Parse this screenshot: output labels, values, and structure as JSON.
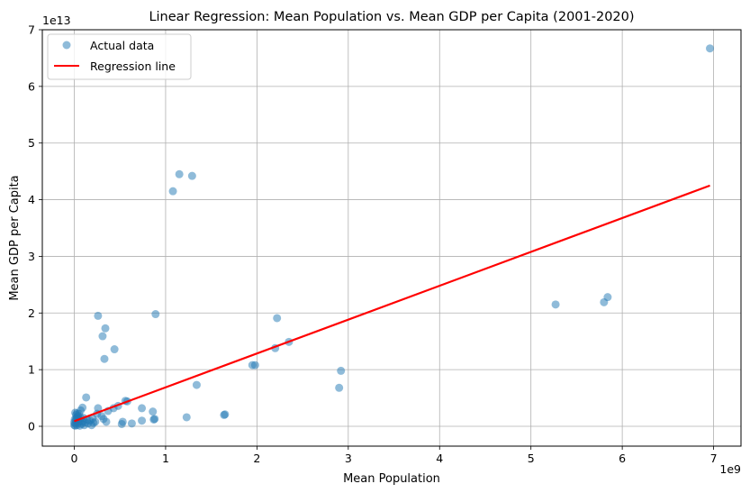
{
  "chart_data": {
    "type": "scatter",
    "title": "Linear Regression: Mean Population vs. Mean GDP per Capita (2001-2020)",
    "xlabel": "Mean Population",
    "ylabel": "Mean GDP per Capita",
    "x_multiplier": "1e9",
    "y_multiplier": "1e13",
    "xlim": [
      -0.35,
      7.3
    ],
    "ylim": [
      -0.35,
      7.0
    ],
    "x_ticks": [
      0,
      1,
      2,
      3,
      4,
      5,
      6,
      7
    ],
    "y_ticks": [
      0,
      1,
      2,
      3,
      4,
      5,
      6,
      7
    ],
    "grid": true,
    "legend_position": "top-left",
    "series": [
      {
        "name": "Actual data",
        "kind": "scatter",
        "color": "#1f77b4",
        "points": [
          [
            6.96,
            6.67
          ],
          [
            1.15,
            4.45
          ],
          [
            1.29,
            4.42
          ],
          [
            1.08,
            4.15
          ],
          [
            0.89,
            1.98
          ],
          [
            0.26,
            1.95
          ],
          [
            0.34,
            1.73
          ],
          [
            0.31,
            1.59
          ],
          [
            0.44,
            1.36
          ],
          [
            0.33,
            1.19
          ],
          [
            2.22,
            1.91
          ],
          [
            2.35,
            1.49
          ],
          [
            2.2,
            1.38
          ],
          [
            1.95,
            1.08
          ],
          [
            1.98,
            1.08
          ],
          [
            2.92,
            0.98
          ],
          [
            2.9,
            0.68
          ],
          [
            5.27,
            2.15
          ],
          [
            5.8,
            2.19
          ],
          [
            5.84,
            2.28
          ],
          [
            1.34,
            0.73
          ],
          [
            1.65,
            0.21
          ],
          [
            1.64,
            0.2
          ],
          [
            1.23,
            0.16
          ],
          [
            0.88,
            0.13
          ],
          [
            0.87,
            0.12
          ],
          [
            0.74,
            0.1
          ],
          [
            0.74,
            0.32
          ],
          [
            0.86,
            0.26
          ],
          [
            0.63,
            0.05
          ],
          [
            0.53,
            0.08
          ],
          [
            0.52,
            0.04
          ],
          [
            0.58,
            0.44
          ],
          [
            0.56,
            0.45
          ],
          [
            0.48,
            0.36
          ],
          [
            0.43,
            0.32
          ],
          [
            0.37,
            0.27
          ],
          [
            0.35,
            0.08
          ],
          [
            0.32,
            0.13
          ],
          [
            0.3,
            0.18
          ],
          [
            0.26,
            0.32
          ],
          [
            0.25,
            0.22
          ],
          [
            0.23,
            0.08
          ],
          [
            0.13,
            0.51
          ],
          [
            0.09,
            0.33
          ],
          [
            0.07,
            0.28
          ],
          [
            0.05,
            0.22
          ],
          [
            0.04,
            0.18
          ],
          [
            0.03,
            0.23
          ],
          [
            0.02,
            0.2
          ],
          [
            0.01,
            0.24
          ],
          [
            0.005,
            0.12
          ],
          [
            0.0,
            0.02
          ],
          [
            0.01,
            0.05
          ],
          [
            0.02,
            0.1
          ],
          [
            0.03,
            0.02
          ],
          [
            0.04,
            0.06
          ],
          [
            0.05,
            0.13
          ],
          [
            0.06,
            0.09
          ],
          [
            0.08,
            0.04
          ],
          [
            0.1,
            0.15
          ],
          [
            0.11,
            0.02
          ],
          [
            0.12,
            0.07
          ],
          [
            0.14,
            0.12
          ],
          [
            0.15,
            0.05
          ],
          [
            0.17,
            0.1
          ],
          [
            0.19,
            0.02
          ],
          [
            0.2,
            0.14
          ],
          [
            0.21,
            0.06
          ],
          [
            0.02,
            0.14
          ],
          [
            0.01,
            0.01
          ],
          [
            0.03,
            0.16
          ],
          [
            0.0,
            0.07
          ],
          [
            0.06,
            0.01
          ],
          [
            0.07,
            0.15
          ],
          [
            0.09,
            0.08
          ]
        ]
      },
      {
        "name": "Regression line",
        "kind": "line",
        "color": "#ff0000",
        "points": [
          [
            0.0,
            0.09
          ],
          [
            6.96,
            4.25
          ]
        ]
      }
    ]
  }
}
